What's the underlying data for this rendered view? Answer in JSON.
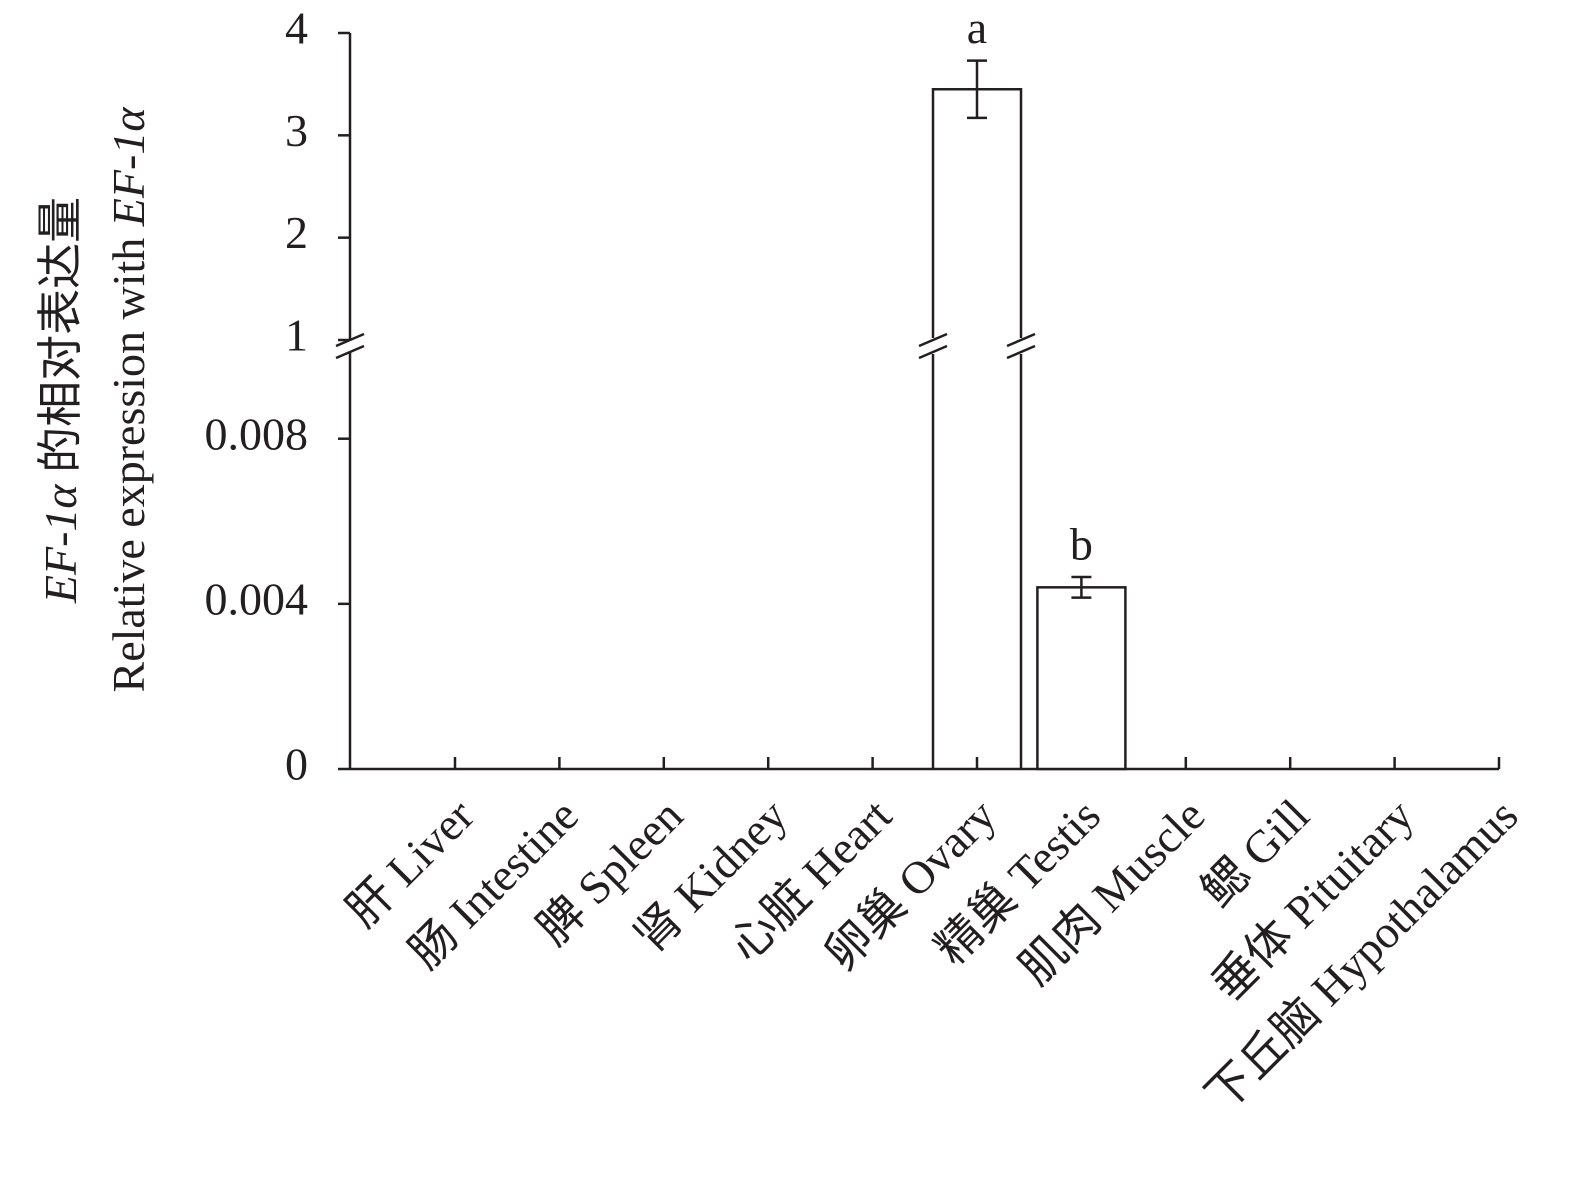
{
  "chart_data": {
    "type": "bar",
    "y_label": [
      [
        {
          "text": "EF-1α",
          "italic": true
        },
        {
          "text": " 的相对表达量"
        }
      ],
      [
        {
          "text": "Relative expression with "
        },
        {
          "text": "EF-1α",
          "italic": true
        }
      ]
    ],
    "categories": [
      "肝 Liver",
      "肠 Intestine",
      "脾 Spleen",
      "肾 Kidney",
      "心脏 Heart",
      "卵巢 Ovary",
      "精巢 Testis",
      "肌肉 Muscle",
      "鳃 Gill",
      "垂体 Pituitary",
      "下丘脑 Hypothalamus"
    ],
    "values": [
      0,
      0,
      0,
      0,
      0,
      3.45,
      0.0044,
      0,
      0,
      0,
      0
    ],
    "errors": [
      0,
      0,
      0,
      0,
      0,
      0.28,
      0.00025,
      0,
      0,
      0,
      0
    ],
    "annotations": [
      null,
      null,
      null,
      null,
      null,
      "a",
      "b",
      null,
      null,
      null,
      null
    ],
    "color": "#ffffff",
    "y_segments": [
      {
        "ylim": [
          0,
          0.0101
        ],
        "yticks": [
          0,
          0.004,
          0.008
        ]
      },
      {
        "ylim": [
          1,
          4
        ],
        "yticks": [
          1,
          2,
          3,
          4
        ]
      }
    ],
    "axis_break": true
  }
}
